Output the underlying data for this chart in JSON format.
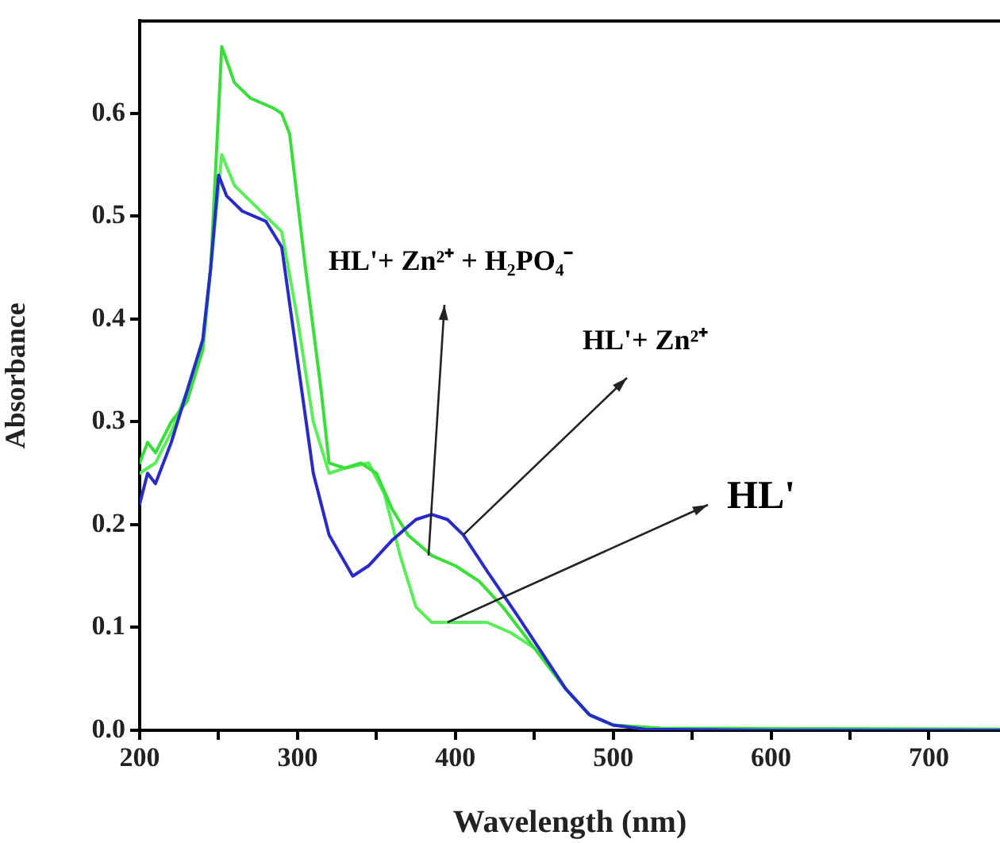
{
  "chart_data": {
    "type": "line",
    "xlabel": "Wavelength (nm)",
    "ylabel": "Absorbance",
    "xlim": [
      200,
      745
    ],
    "ylim": [
      0,
      0.69
    ],
    "xticks": [
      200,
      {
        "value": 250,
        "label": null
      },
      300,
      {
        "value": 350,
        "label": null
      },
      400,
      {
        "value": 450,
        "label": null
      },
      500,
      {
        "value": 550,
        "label": null
      },
      600,
      {
        "value": 650,
        "label": null
      },
      700
    ],
    "yticks": [
      {
        "value": 0,
        "label": "0.0"
      },
      0.1,
      0.2,
      0.3,
      0.4,
      0.5,
      0.6
    ],
    "grid": false,
    "legend": false,
    "marker": "none",
    "line_style": "solid",
    "series": [
      {
        "color": "#2a2ac8",
        "x": [
          200,
          205,
          210,
          220,
          230,
          240,
          245,
          250,
          255,
          265,
          280,
          290,
          300,
          310,
          320,
          335,
          345,
          360,
          375,
          385,
          395,
          405,
          420,
          440,
          455,
          470,
          485,
          500,
          520,
          600,
          745
        ],
        "values": [
          0.22,
          0.25,
          0.24,
          0.28,
          0.33,
          0.38,
          0.45,
          0.54,
          0.52,
          0.505,
          0.495,
          0.47,
          0.36,
          0.25,
          0.19,
          0.15,
          0.16,
          0.185,
          0.205,
          0.21,
          0.205,
          0.19,
          0.155,
          0.11,
          0.075,
          0.04,
          0.015,
          0.005,
          0.001,
          0,
          0
        ]
      },
      {
        "color": "#3ade3a",
        "x": [
          200,
          205,
          210,
          220,
          230,
          240,
          245,
          252,
          260,
          270,
          285,
          290,
          295,
          305,
          315,
          320,
          330,
          340,
          350,
          360,
          370,
          385,
          400,
          415,
          430,
          450,
          470,
          485,
          500,
          530,
          745
        ],
        "values": [
          0.26,
          0.28,
          0.27,
          0.3,
          0.32,
          0.37,
          0.45,
          0.665,
          0.63,
          0.615,
          0.605,
          0.6,
          0.58,
          0.45,
          0.33,
          0.26,
          0.255,
          0.26,
          0.25,
          0.215,
          0.19,
          0.17,
          0.16,
          0.145,
          0.12,
          0.08,
          0.04,
          0.015,
          0.005,
          0.002,
          0.001
        ]
      },
      {
        "color": "#5aee5a",
        "x": [
          200,
          210,
          220,
          230,
          240,
          245,
          252,
          260,
          280,
          290,
          300,
          310,
          320,
          330,
          345,
          355,
          365,
          375,
          385,
          400,
          420,
          435,
          450,
          470,
          485,
          500,
          530,
          745
        ],
        "values": [
          0.25,
          0.26,
          0.29,
          0.33,
          0.38,
          0.45,
          0.56,
          0.53,
          0.5,
          0.485,
          0.4,
          0.3,
          0.25,
          0.255,
          0.26,
          0.23,
          0.17,
          0.12,
          0.105,
          0.105,
          0.105,
          0.095,
          0.08,
          0.04,
          0.015,
          0.005,
          0.002,
          0.001
        ]
      }
    ],
    "annotations": [
      {
        "text": "HL'+ Zn²⁺ + H₂PO₄⁻",
        "x": 383,
        "y": 0.17
      },
      {
        "text": "HL'+ Zn²⁺",
        "x": 405,
        "y": 0.19
      },
      {
        "text": "HL'",
        "x": 395,
        "y": 0.105
      }
    ]
  }
}
